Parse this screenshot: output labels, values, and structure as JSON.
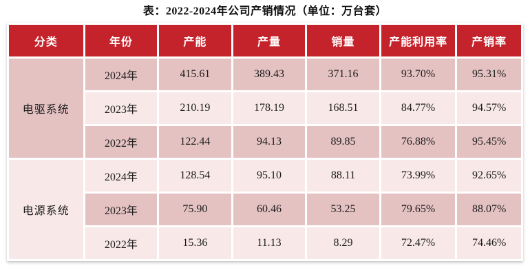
{
  "title": "表：2022-2024年公司产销情况（单位：万台套）",
  "colors": {
    "header_bg": "#c5232b",
    "header_text": "#ffffff",
    "row_dark": "#e5c2c2",
    "row_light": "#f8e8e8",
    "body_text": "#1c1c1c"
  },
  "table": {
    "headers": [
      "分类",
      "年份",
      "产能",
      "产量",
      "销量",
      "产能利用率",
      "产销率"
    ],
    "groups": [
      {
        "category": "电驱系统",
        "rows": [
          {
            "year": "2024年",
            "capacity": "415.61",
            "output": "389.43",
            "sales": "371.16",
            "utilization": "93.70%",
            "sales_ratio": "95.31%"
          },
          {
            "year": "2023年",
            "capacity": "210.19",
            "output": "178.19",
            "sales": "168.51",
            "utilization": "84.77%",
            "sales_ratio": "94.57%"
          },
          {
            "year": "2022年",
            "capacity": "122.44",
            "output": "94.13",
            "sales": "89.85",
            "utilization": "76.88%",
            "sales_ratio": "95.45%"
          }
        ]
      },
      {
        "category": "电源系统",
        "rows": [
          {
            "year": "2024年",
            "capacity": "128.54",
            "output": "95.10",
            "sales": "88.11",
            "utilization": "73.99%",
            "sales_ratio": "92.65%"
          },
          {
            "year": "2023年",
            "capacity": "75.90",
            "output": "60.46",
            "sales": "53.25",
            "utilization": "79.65%",
            "sales_ratio": "88.07%"
          },
          {
            "year": "2022年",
            "capacity": "15.36",
            "output": "11.13",
            "sales": "8.29",
            "utilization": "72.47%",
            "sales_ratio": "74.46%"
          }
        ]
      }
    ]
  }
}
